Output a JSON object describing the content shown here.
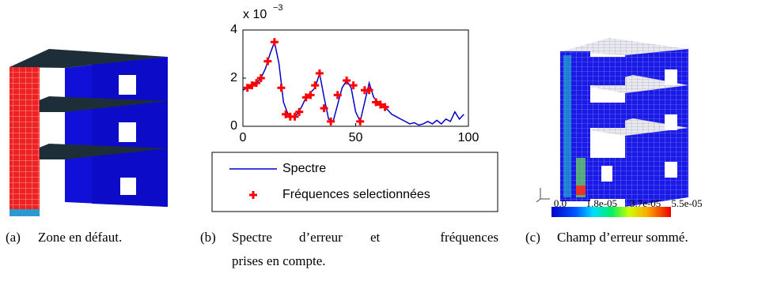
{
  "figures": [
    {
      "label": "(a)",
      "caption": "Zone en défaut."
    },
    {
      "label": "(b)",
      "caption": [
        "Spectre",
        "d’erreur",
        "et",
        "fréquences"
      ],
      "caption_line2": "prises en compte."
    },
    {
      "label": "(c)",
      "caption": "Champ d’erreur sommé."
    }
  ],
  "chart_data": {
    "type": "line",
    "y_exponent": {
      "base": "x 10",
      "power": "−3"
    },
    "xlim": [
      0,
      100
    ],
    "ylim": [
      0,
      4
    ],
    "xticks": [
      0,
      50,
      100
    ],
    "yticks": [
      0,
      2,
      4
    ],
    "legend": "bottom",
    "series": [
      {
        "name": "Spectre",
        "color": "#0000cc",
        "kind": "line",
        "x": [
          0,
          2,
          4,
          6,
          8,
          10,
          12,
          14,
          16,
          18,
          20,
          22,
          24,
          26,
          28,
          30,
          32,
          34,
          36,
          38,
          40,
          42,
          44,
          46,
          48,
          50,
          52,
          54,
          56,
          58,
          60,
          62,
          64,
          66,
          68,
          70,
          72,
          74,
          76,
          78,
          80,
          82,
          84,
          86,
          88,
          90,
          92,
          94,
          96,
          98
        ],
        "values": [
          1.5,
          1.6,
          1.7,
          1.8,
          2.0,
          2.4,
          3.0,
          3.5,
          2.6,
          1.0,
          0.5,
          0.4,
          0.5,
          0.8,
          1.2,
          1.4,
          1.6,
          2.2,
          1.2,
          0.3,
          0.2,
          0.9,
          1.6,
          1.9,
          1.6,
          0.6,
          0.2,
          1.0,
          1.8,
          1.2,
          1.0,
          0.8,
          0.7,
          0.5,
          0.4,
          0.3,
          0.2,
          0.1,
          0.15,
          0.05,
          0.1,
          0.2,
          0.1,
          0.25,
          0.1,
          0.3,
          0.2,
          0.6,
          0.3,
          0.5
        ]
      },
      {
        "name": "Fréquences selectionnées",
        "color": "#ff0000",
        "kind": "scatter",
        "x": [
          2,
          4,
          6,
          8,
          11,
          14,
          17,
          19,
          21,
          23,
          25,
          28,
          30,
          32,
          34,
          36,
          39,
          42,
          46,
          49,
          52,
          54,
          56,
          59,
          61,
          63
        ],
        "values": [
          1.6,
          1.7,
          1.8,
          2.0,
          2.7,
          3.5,
          1.6,
          0.5,
          0.4,
          0.4,
          0.6,
          1.2,
          1.3,
          1.7,
          2.2,
          0.75,
          0.2,
          1.3,
          1.9,
          1.7,
          0.2,
          1.5,
          1.5,
          1.0,
          0.9,
          0.8
        ]
      }
    ]
  },
  "colorbar": {
    "clim": [
      0,
      5.5e-05
    ],
    "ticks": [
      {
        "value": 0,
        "label": "0.0"
      },
      {
        "value": 1.8e-05,
        "label": "1.8e-05"
      },
      {
        "value": 3.7e-05,
        "label": "3.7e-05"
      },
      {
        "value": 5.5e-05,
        "label": "5.5e-05"
      }
    ]
  }
}
